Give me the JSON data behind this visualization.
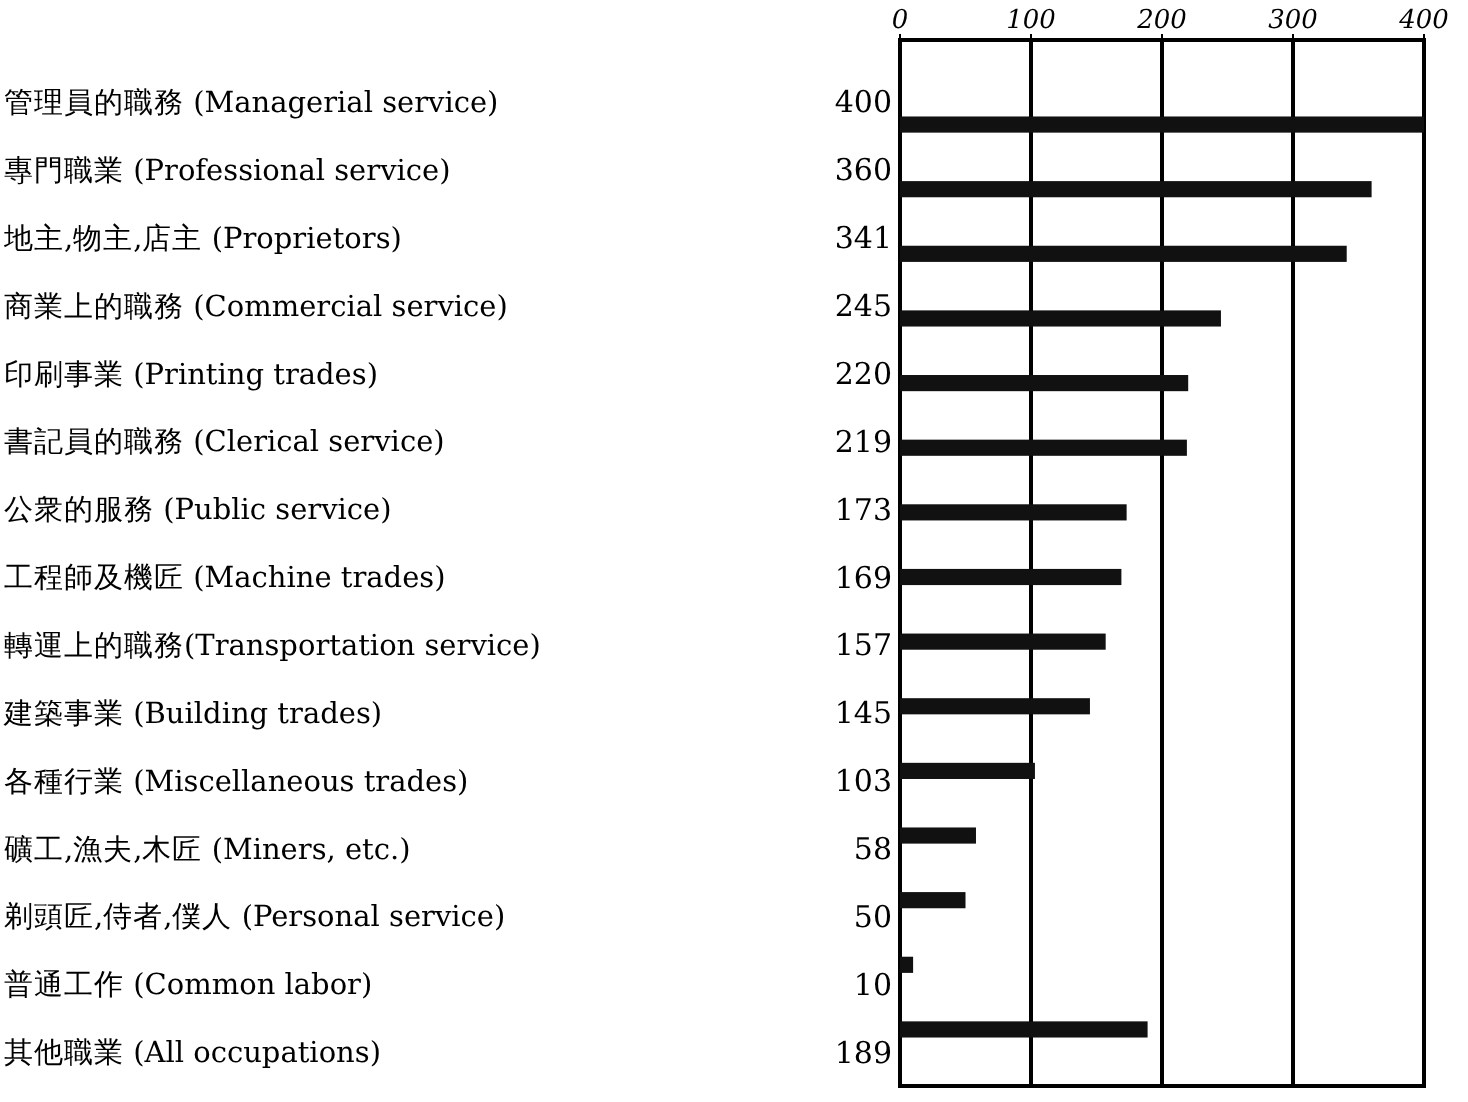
{
  "chart_data": {
    "type": "bar",
    "orientation": "horizontal",
    "categories": [
      "管理員的職務 (Managerial service)",
      "專門職業 (Professional service)",
      "地主,物主,店主 (Proprietors)",
      "商業上的職務 (Commercial service)",
      "印刷事業 (Printing trades)",
      "書記員的職務 (Clerical service)",
      "公衆的服務 (Public service)",
      "工程師及機匠 (Machine trades)",
      "轉運上的職務(Transportation service)",
      "建築事業 (Building trades)",
      "各種行業 (Miscellaneous trades)",
      "礦工,漁夫,木匠 (Miners, etc.)",
      "剃頭匠,侍者,僕人 (Personal service)",
      "普通工作 (Common labor)",
      "其他職業 (All occupations)"
    ],
    "values": [
      400,
      360,
      341,
      245,
      220,
      219,
      173,
      169,
      157,
      145,
      103,
      58,
      50,
      10,
      189
    ],
    "color": "#111111",
    "data_labels": true,
    "x2lim": [
      0,
      400
    ],
    "x2ticks": [
      0,
      100,
      200,
      300,
      400
    ],
    "grid": "x"
  }
}
